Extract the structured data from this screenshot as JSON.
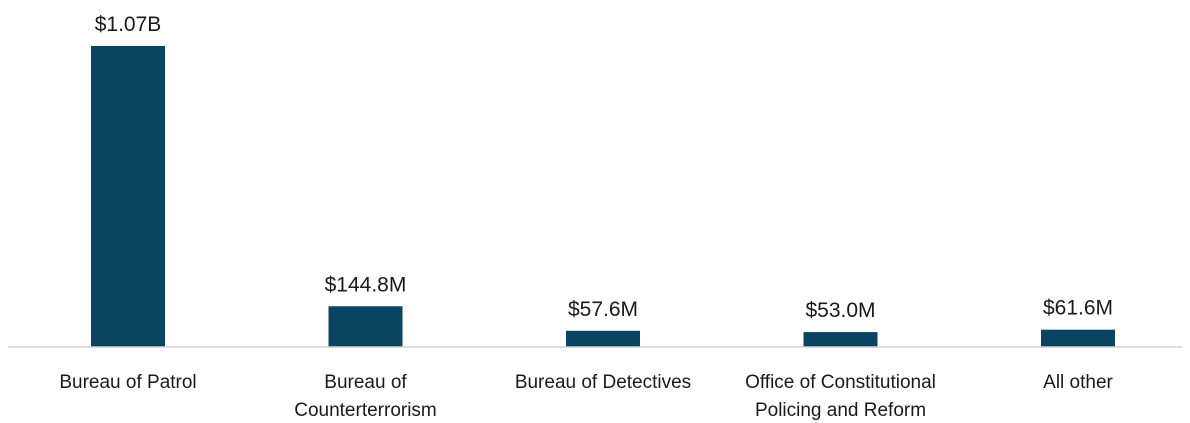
{
  "chart_data": {
    "type": "bar",
    "categories": [
      [
        "Bureau of Patrol"
      ],
      [
        "Bureau of",
        "Counterterrorism"
      ],
      [
        "Bureau of Detectives"
      ],
      [
        "Office of Constitutional",
        "Policing and Reform"
      ],
      [
        "All other"
      ]
    ],
    "values": [
      1070,
      144.8,
      57.6,
      53.0,
      61.6
    ],
    "value_units": "millions of dollars",
    "data_labels": [
      "$1.07B",
      "$144.8M",
      "$57.6M",
      "$53.0M",
      "$61.6M"
    ],
    "ylim": [
      0,
      1070
    ],
    "bar_color": "#0b4463",
    "axis_color": "#d0d0d0",
    "grid": false
  }
}
